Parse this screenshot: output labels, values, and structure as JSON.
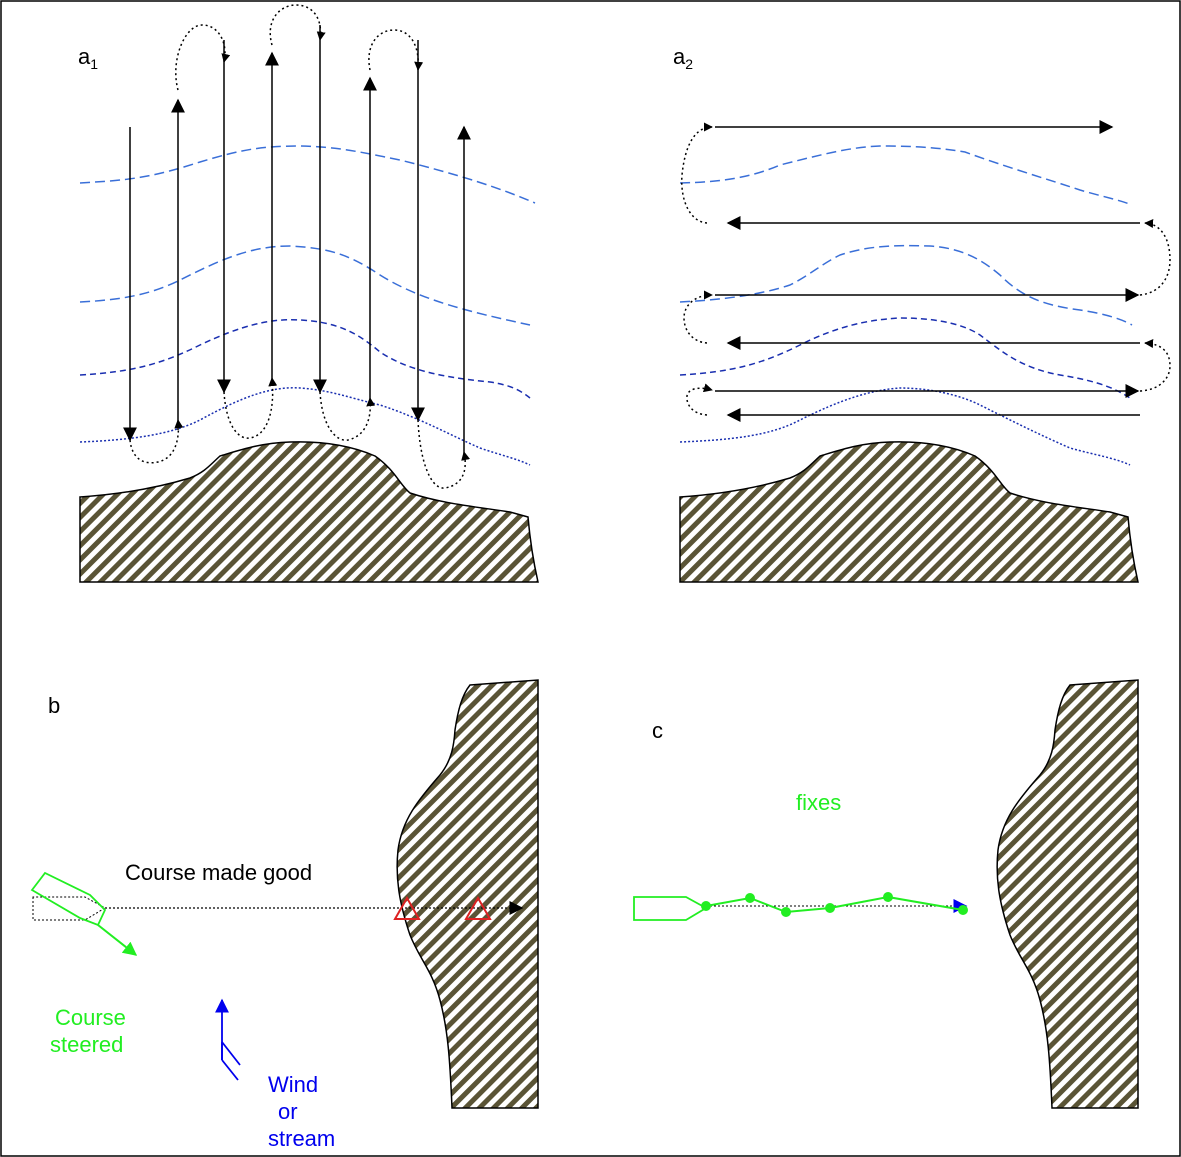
{
  "panels": {
    "a1": {
      "letter": "a",
      "subscript": "1"
    },
    "a2": {
      "letter": "a",
      "subscript": "2"
    },
    "b": {
      "letter": "b"
    },
    "c": {
      "letter": "c"
    }
  },
  "labels": {
    "course_made_good": "Course made good",
    "course_steered_line1": "Course",
    "course_steered_line2": "steered",
    "wind_line1": "Wind",
    "wind_line2": "or",
    "wind_line3": "stream",
    "fixes": "fixes"
  },
  "colors": {
    "frame": "#000000",
    "contour": "#3a6fd8",
    "contour_dark": "#1a2fb0",
    "land_stripe": "#5a5436",
    "boat": "#22ee22",
    "wind": "#0000ee",
    "marker": "#dd2222"
  }
}
